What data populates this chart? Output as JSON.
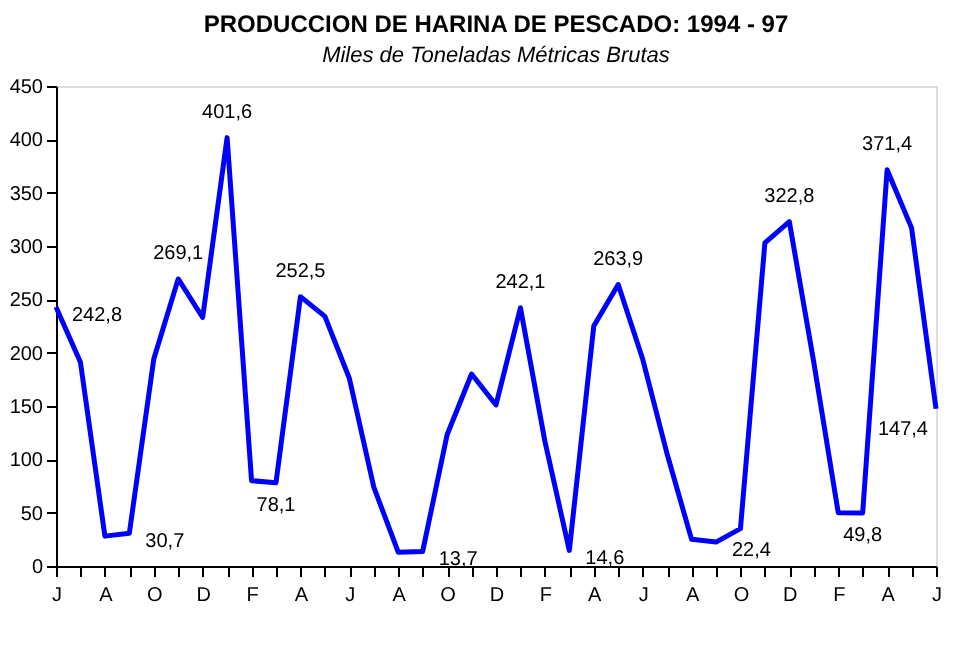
{
  "chart_data": {
    "type": "line",
    "title": "PRODUCCION DE HARINA DE PESCADO: 1994 - 97",
    "subtitle": "Miles de Toneladas Métricas Brutas",
    "categories": [
      "J",
      null,
      "A",
      null,
      "O",
      null,
      "D",
      null,
      "F",
      null,
      "A",
      null,
      "J",
      null,
      "A",
      null,
      "O",
      null,
      "D",
      null,
      "F",
      null,
      "A",
      null,
      "J",
      null,
      "A",
      null,
      "O",
      null,
      "D",
      null,
      "F",
      null,
      "A",
      null,
      "J"
    ],
    "series": [
      {
        "color": "#0000ff",
        "values": [
          242.8,
          191,
          28,
          30.7,
          194,
          269.1,
          233,
          401.6,
          80,
          78.1,
          252.5,
          234,
          176,
          74,
          13,
          13.7,
          123,
          180,
          151,
          242.1,
          117,
          14.6,
          225,
          263.9,
          194,
          105,
          25,
          22.4,
          35,
          303,
          322.8,
          191,
          50,
          49.8,
          371.4,
          317,
          147.4
        ],
        "value_labels": [
          "242,8",
          null,
          null,
          "30,7",
          null,
          "269,1",
          null,
          "401,6",
          null,
          "78,1",
          "252,5",
          null,
          null,
          null,
          null,
          "13,7",
          null,
          null,
          null,
          "242,1",
          null,
          "14,6",
          null,
          "263,9",
          null,
          null,
          null,
          "22,4",
          null,
          null,
          "322,8",
          null,
          null,
          "49,8",
          "371,4",
          null,
          "147,4"
        ]
      }
    ],
    "ylim": [
      0,
      450
    ],
    "yticks": [
      0,
      50,
      100,
      150,
      200,
      250,
      300,
      350,
      400,
      450
    ],
    "grid": false,
    "marker": "none",
    "line_style": "solid"
  }
}
